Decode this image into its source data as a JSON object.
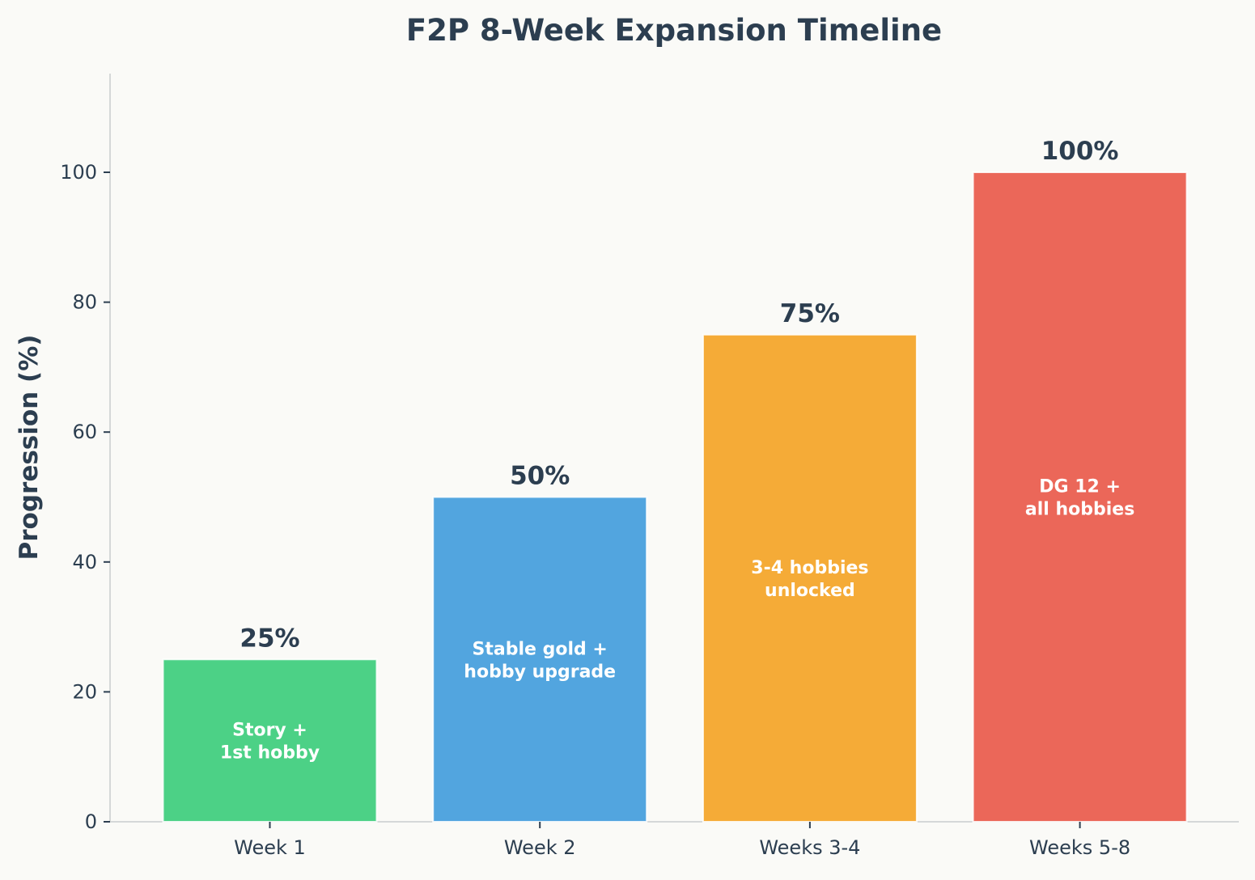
{
  "chart_data": {
    "type": "bar",
    "title": "F2P 8-Week Expansion Timeline",
    "xlabel": "",
    "ylabel": "Progression (%)",
    "ylim": [
      0,
      115
    ],
    "yticks": [
      0,
      20,
      40,
      60,
      80,
      100
    ],
    "categories": [
      "Week 1",
      "Week 2",
      "Weeks 3-4",
      "Weeks 5-8"
    ],
    "values": [
      25,
      50,
      75,
      100
    ],
    "value_labels": [
      "25%",
      "50%",
      "75%",
      "100%"
    ],
    "bar_annotations": [
      [
        "Story +",
        "1st hobby"
      ],
      [
        "Stable gold +",
        "hobby upgrade"
      ],
      [
        "3-4 hobbies",
        "unlocked"
      ],
      [
        "DG 12 +",
        "all hobbies"
      ]
    ],
    "colors": [
      "#4cd186",
      "#52a5df",
      "#f5ab37",
      "#eb6759"
    ],
    "grid": false,
    "legend": "none"
  }
}
